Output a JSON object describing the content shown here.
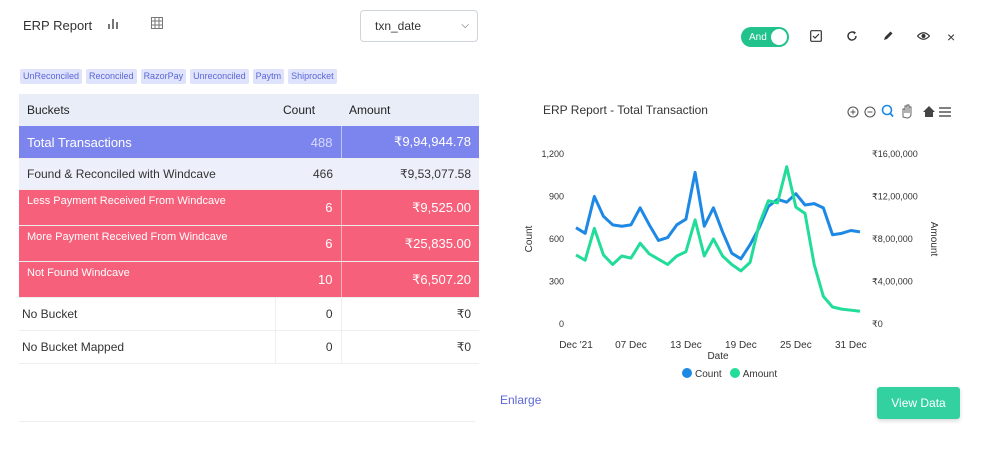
{
  "header": {
    "title": "ERP Report",
    "select_value": "txn_date"
  },
  "tags": [
    "UnReconciled",
    "Reconciled",
    "RazorPay",
    "Unreconciled",
    "Paytm",
    "Shiprocket"
  ],
  "table": {
    "headers": [
      "Buckets",
      "Count",
      "Amount"
    ],
    "rows": [
      {
        "bucket": "Total  Transactions",
        "count": "488",
        "amount": "₹9,94,944.78"
      },
      {
        "bucket": "Found & Reconciled with Windcave",
        "count": "466",
        "amount": "₹9,53,077.58"
      },
      {
        "bucket": "Less Payment Received From Windcave",
        "count": "6",
        "amount": "₹9,525.00"
      },
      {
        "bucket": "More Payment Received From Windcave",
        "count": "6",
        "amount": "₹25,835.00"
      },
      {
        "bucket": "Not Found Windcave",
        "count": "10",
        "amount": "₹6,507.20"
      },
      {
        "bucket": "No Bucket",
        "count": "0",
        "amount": "₹0"
      },
      {
        "bucket": "No Bucket Mapped",
        "count": "0",
        "amount": "₹0"
      }
    ]
  },
  "toolbar": {
    "toggle_label": "And",
    "close_label": "×"
  },
  "actions": {
    "enlarge": "Enlarge",
    "view_data": "View Data"
  },
  "colors": {
    "count": "#1e88e5",
    "amount": "#22dd99",
    "total_row": "#7c84ee",
    "red_row": "#f7607a",
    "accent": "#5b67d8"
  },
  "chart_data": {
    "type": "line",
    "title": "ERP Report - Total Transaction",
    "xlabel": "Date",
    "ylabel": "Count",
    "y2label": "Amount",
    "ylim": [
      0,
      1200
    ],
    "y2lim": [
      0,
      1600000
    ],
    "x_ticks": [
      "Dec '21",
      "07 Dec",
      "13 Dec",
      "19 Dec",
      "25 Dec",
      "31 Dec"
    ],
    "y_ticks": [
      "0",
      "300",
      "600",
      "900",
      "1,200"
    ],
    "y2_ticks": [
      "₹0",
      "₹4,00,000",
      "₹8,00,000",
      "₹12,00,000",
      "₹16,00,000"
    ],
    "x": [
      "2021-12-01",
      "2021-12-02",
      "2021-12-03",
      "2021-12-04",
      "2021-12-05",
      "2021-12-06",
      "2021-12-07",
      "2021-12-08",
      "2021-12-09",
      "2021-12-10",
      "2021-12-11",
      "2021-12-12",
      "2021-12-13",
      "2021-12-14",
      "2021-12-15",
      "2021-12-16",
      "2021-12-17",
      "2021-12-18",
      "2021-12-19",
      "2021-12-20",
      "2021-12-21",
      "2021-12-22",
      "2021-12-23",
      "2021-12-24",
      "2021-12-25",
      "2021-12-26",
      "2021-12-27",
      "2021-12-28",
      "2021-12-29",
      "2021-12-30",
      "2021-12-31",
      "2022-01-01"
    ],
    "series": [
      {
        "name": "Count",
        "axis": "left",
        "values": [
          680,
          640,
          900,
          760,
          700,
          690,
          700,
          820,
          700,
          590,
          610,
          700,
          740,
          1070,
          690,
          820,
          650,
          500,
          460,
          560,
          680,
          830,
          880,
          860,
          920,
          840,
          850,
          820,
          630,
          640,
          660,
          650
        ]
      },
      {
        "name": "Amount",
        "axis": "right",
        "values": [
          650000,
          600000,
          900000,
          650000,
          560000,
          640000,
          620000,
          760000,
          660000,
          610000,
          560000,
          640000,
          680000,
          980000,
          640000,
          800000,
          640000,
          560000,
          500000,
          580000,
          940000,
          1160000,
          1140000,
          1480000,
          1100000,
          1040000,
          560000,
          260000,
          160000,
          140000,
          130000,
          120000
        ]
      }
    ],
    "legend_position": "bottom-center",
    "grid": false
  }
}
